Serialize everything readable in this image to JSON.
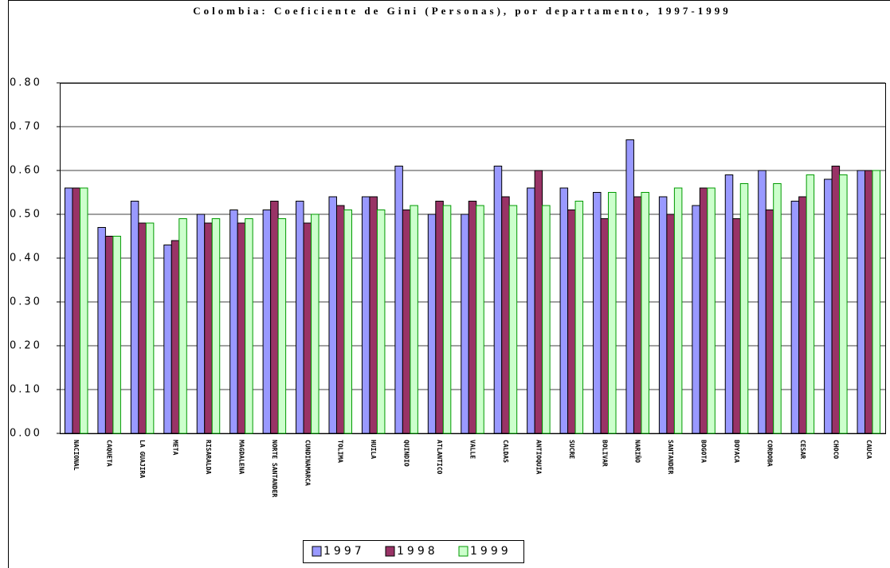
{
  "chart_data": {
    "type": "bar",
    "title": "Colombia: Coeficiente de Gini (Personas), por departamento, 1997-1999",
    "categories": [
      "NACIONAL",
      "CAQUETA",
      "LA GUAJIRA",
      "META",
      "RISARALDA",
      "MAGDALENA",
      "NORTE SANTANDER",
      "CUNDINAMARCA",
      "TOLIMA",
      "HUILA",
      "QUINDIO",
      "ATLANTICO",
      "VALLE",
      "CALDAS",
      "ANTIOQUIA",
      "SUCRE",
      "BOLIVAR",
      "NARIÑO",
      "SANTANDER",
      "BOGOTA",
      "BOYACA",
      "CORDOBA",
      "CESAR",
      "CHOCO",
      "CAUCA"
    ],
    "series": [
      {
        "name": "1997",
        "color": "#9999ff",
        "edge": "#000000",
        "values": [
          0.56,
          0.47,
          0.53,
          0.43,
          0.5,
          0.51,
          0.51,
          0.53,
          0.54,
          0.54,
          0.61,
          0.5,
          0.5,
          0.61,
          0.56,
          0.56,
          0.55,
          0.67,
          0.54,
          0.52,
          0.59,
          0.6,
          0.53,
          0.58,
          0.6
        ]
      },
      {
        "name": "1998",
        "color": "#993366",
        "edge": "#000000",
        "values": [
          0.56,
          0.45,
          0.48,
          0.44,
          0.48,
          0.48,
          0.53,
          0.48,
          0.52,
          0.54,
          0.51,
          0.53,
          0.53,
          0.54,
          0.6,
          0.51,
          0.49,
          0.54,
          0.5,
          0.56,
          0.49,
          0.51,
          0.54,
          0.61,
          0.6
        ]
      },
      {
        "name": "1999",
        "color": "#ccffcc",
        "edge": "#009900",
        "values": [
          0.56,
          0.45,
          0.48,
          0.49,
          0.49,
          0.49,
          0.49,
          0.5,
          0.51,
          0.51,
          0.52,
          0.52,
          0.52,
          0.52,
          0.52,
          0.53,
          0.55,
          0.55,
          0.56,
          0.56,
          0.57,
          0.57,
          0.59,
          0.59,
          0.6
        ]
      }
    ],
    "ylim": [
      0,
      0.8
    ],
    "yticks": [
      {
        "value": 0,
        "label": "0.00"
      },
      {
        "value": 0.1,
        "label": "0.10"
      },
      {
        "value": 0.2,
        "label": "0.20"
      },
      {
        "value": 0.3,
        "label": "0.30"
      },
      {
        "value": 0.4,
        "label": "0.40"
      },
      {
        "value": 0.5,
        "label": "0.50"
      },
      {
        "value": 0.6,
        "label": "0.60"
      },
      {
        "value": 0.7,
        "label": "0.70"
      },
      {
        "value": 0.8,
        "label": "0.80"
      }
    ],
    "grid": true
  }
}
